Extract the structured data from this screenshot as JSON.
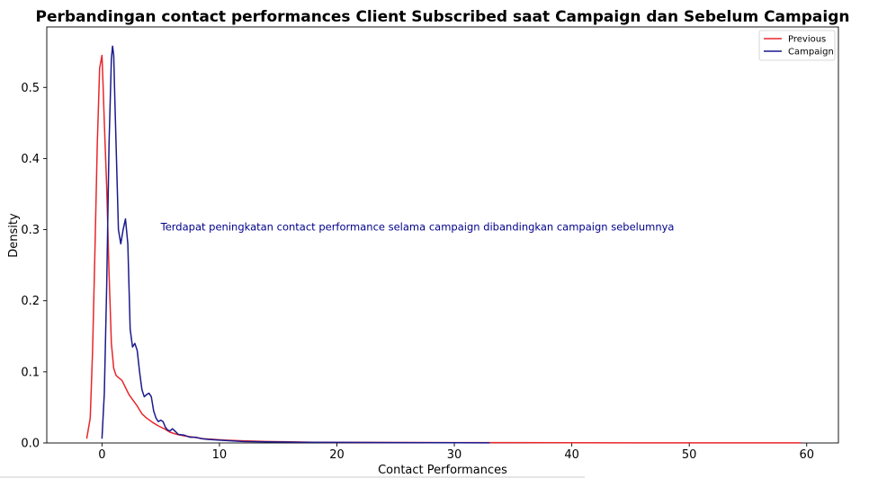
{
  "chart_data": {
    "type": "line",
    "title": "Perbandingan contact performances Client Subscribed saat Campaign dan Sebelum Campaign",
    "xlabel": "Contact Performances",
    "ylabel": "Density",
    "xlim": [
      -4.7,
      62.7
    ],
    "ylim": [
      0,
      0.585
    ],
    "xticks": [
      0,
      10,
      20,
      30,
      40,
      50,
      60
    ],
    "yticks": [
      0.0,
      0.1,
      0.2,
      0.3,
      0.4,
      0.5
    ],
    "grid": false,
    "legend_position": "top-right",
    "annotation": {
      "text": "Terdapat peningkatan contact performance selama campaign dibandingkan campaign sebelumnya",
      "x": 5,
      "y": 0.3,
      "color": "#00008b"
    },
    "series": [
      {
        "name": "Previous",
        "color": "#e8262a",
        "x": [
          -1.3,
          -1.0,
          -0.8,
          -0.6,
          -0.4,
          -0.2,
          0.0,
          0.1,
          0.2,
          0.4,
          0.6,
          0.8,
          1.0,
          1.2,
          1.4,
          1.7,
          2.0,
          2.3,
          2.6,
          3.0,
          3.4,
          3.8,
          4.3,
          4.8,
          5.3,
          5.8,
          6.4,
          7.0,
          7.8,
          8.6,
          9.5,
          10.5,
          12.0,
          14.0,
          16.0,
          18.0,
          21.0,
          25.0,
          30.0,
          35.0,
          40.0,
          45.0,
          50.0,
          55.0,
          59.5
        ],
        "values": [
          0.006,
          0.035,
          0.13,
          0.27,
          0.42,
          0.527,
          0.545,
          0.5,
          0.45,
          0.36,
          0.24,
          0.14,
          0.105,
          0.095,
          0.092,
          0.088,
          0.078,
          0.068,
          0.061,
          0.052,
          0.041,
          0.035,
          0.029,
          0.024,
          0.02,
          0.015,
          0.012,
          0.01,
          0.008,
          0.006,
          0.005,
          0.004,
          0.003,
          0.002,
          0.0015,
          0.001,
          0.0008,
          0.0006,
          0.0005,
          0.0004,
          0.0003,
          0.0002,
          0.0002,
          0.0001,
          0.0001
        ]
      },
      {
        "name": "Campaign",
        "color": "#1a1a8c",
        "x": [
          0.0,
          0.2,
          0.4,
          0.6,
          0.8,
          0.9,
          1.0,
          1.1,
          1.2,
          1.4,
          1.6,
          1.8,
          2.0,
          2.2,
          2.4,
          2.6,
          2.8,
          3.0,
          3.2,
          3.4,
          3.6,
          3.8,
          4.0,
          4.2,
          4.4,
          4.6,
          4.8,
          5.0,
          5.2,
          5.4,
          5.6,
          5.8,
          6.0,
          6.2,
          6.5,
          7.0,
          7.5,
          8.0,
          8.5,
          9.0,
          10.0,
          11.0,
          12.0,
          14.0,
          17.0,
          20.0,
          25.0,
          30.0,
          33.0
        ],
        "values": [
          0.006,
          0.07,
          0.22,
          0.42,
          0.54,
          0.558,
          0.545,
          0.48,
          0.42,
          0.3,
          0.28,
          0.3,
          0.315,
          0.28,
          0.16,
          0.135,
          0.14,
          0.13,
          0.1,
          0.075,
          0.065,
          0.068,
          0.07,
          0.065,
          0.045,
          0.035,
          0.03,
          0.032,
          0.03,
          0.022,
          0.018,
          0.017,
          0.02,
          0.017,
          0.012,
          0.011,
          0.008,
          0.008,
          0.006,
          0.005,
          0.004,
          0.003,
          0.002,
          0.0015,
          0.001,
          0.0008,
          0.0005,
          0.0003,
          0.0001
        ]
      }
    ]
  }
}
